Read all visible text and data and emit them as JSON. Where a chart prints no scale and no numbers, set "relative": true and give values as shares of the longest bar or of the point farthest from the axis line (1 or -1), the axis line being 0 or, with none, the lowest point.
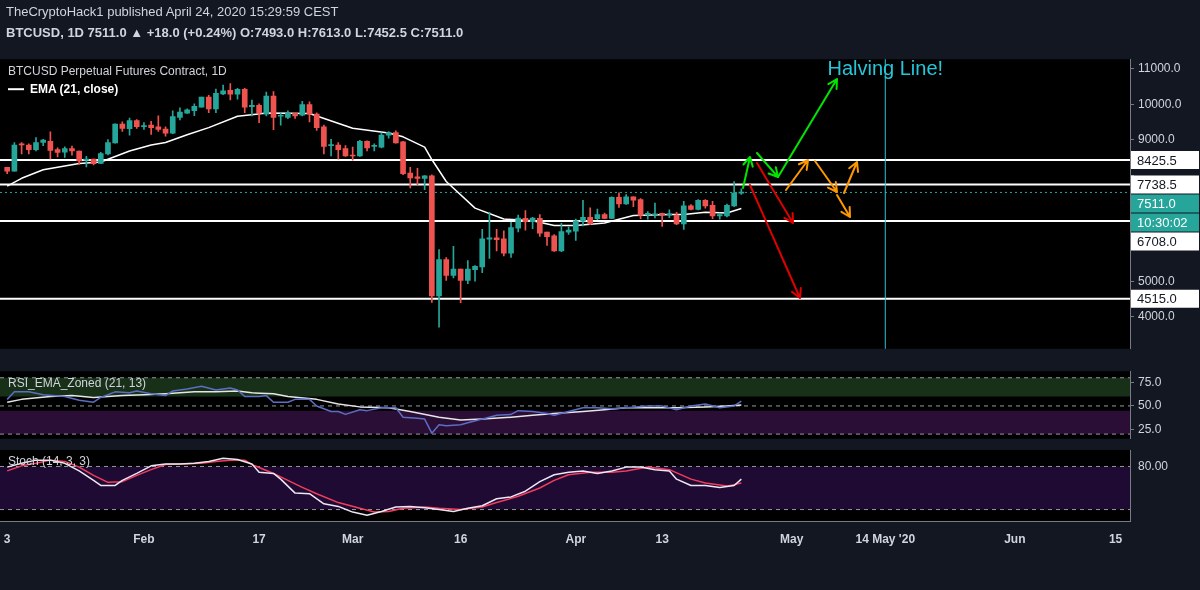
{
  "chart_data": [
    {
      "type": "candlestick",
      "title": "BTCUSD Perpetual Futures Contract, 1D",
      "subtitle": "BTCUSD, 1D  7511.0 ▲ +18.0 (+0.24%) O:7493.0 H:7613.0 L:7452.5 C:7511.0",
      "annotations": [
        "TheCryptoHack1 published April 24, 2020 15:29:59 CEST",
        "10:30:02"
      ],
      "x": [
        "2020-01-13",
        "2020-01-14",
        "2020-01-15",
        "2020-01-16",
        "2020-01-17",
        "2020-01-18",
        "2020-01-19",
        "2020-01-20",
        "2020-01-21",
        "2020-01-22",
        "2020-01-23",
        "2020-01-24",
        "2020-01-25",
        "2020-01-26",
        "2020-01-27",
        "2020-01-28",
        "2020-01-29",
        "2020-01-30",
        "2020-01-31",
        "2020-02-01",
        "2020-02-02",
        "2020-02-03",
        "2020-02-04",
        "2020-02-05",
        "2020-02-06",
        "2020-02-07",
        "2020-02-08",
        "2020-02-09",
        "2020-02-10",
        "2020-02-11",
        "2020-02-12",
        "2020-02-13",
        "2020-02-14",
        "2020-02-15",
        "2020-02-16",
        "2020-02-17",
        "2020-02-18",
        "2020-02-19",
        "2020-02-20",
        "2020-02-21",
        "2020-02-22",
        "2020-02-23",
        "2020-02-24",
        "2020-02-25",
        "2020-02-26",
        "2020-02-27",
        "2020-02-28",
        "2020-02-29",
        "2020-03-01",
        "2020-03-02",
        "2020-03-03",
        "2020-03-04",
        "2020-03-05",
        "2020-03-06",
        "2020-03-07",
        "2020-03-08",
        "2020-03-09",
        "2020-03-10",
        "2020-03-11",
        "2020-03-12",
        "2020-03-13",
        "2020-03-14",
        "2020-03-15",
        "2020-03-16",
        "2020-03-17",
        "2020-03-18",
        "2020-03-19",
        "2020-03-20",
        "2020-03-21",
        "2020-03-22",
        "2020-03-23",
        "2020-03-24",
        "2020-03-25",
        "2020-03-26",
        "2020-03-27",
        "2020-03-28",
        "2020-03-29",
        "2020-03-30",
        "2020-03-31",
        "2020-04-01",
        "2020-04-02",
        "2020-04-03",
        "2020-04-04",
        "2020-04-05",
        "2020-04-06",
        "2020-04-07",
        "2020-04-08",
        "2020-04-09",
        "2020-04-10",
        "2020-04-11",
        "2020-04-12",
        "2020-04-13",
        "2020-04-14",
        "2020-04-15",
        "2020-04-16",
        "2020-04-17",
        "2020-04-18",
        "2020-04-19",
        "2020-04-20",
        "2020-04-21",
        "2020-04-22",
        "2020-04-23",
        "2020-04-24"
      ],
      "ohlc": [
        [
          8220,
          8220,
          8040,
          8110
        ],
        [
          8110,
          8920,
          8110,
          8850
        ],
        [
          8880,
          8920,
          8600,
          8850
        ],
        [
          8850,
          8880,
          8600,
          8720
        ],
        [
          8720,
          9060,
          8680,
          8920
        ],
        [
          8920,
          9010,
          8830,
          8990
        ],
        [
          8950,
          9220,
          8460,
          8700
        ],
        [
          8720,
          8770,
          8510,
          8640
        ],
        [
          8650,
          8800,
          8500,
          8750
        ],
        [
          8750,
          8820,
          8560,
          8680
        ],
        [
          8680,
          8680,
          8300,
          8400
        ],
        [
          8420,
          8530,
          8230,
          8450
        ],
        [
          8450,
          8450,
          8290,
          8320
        ],
        [
          8330,
          8640,
          8320,
          8610
        ],
        [
          8600,
          9000,
          8570,
          8920
        ],
        [
          8910,
          9450,
          8900,
          9440
        ],
        [
          9440,
          9500,
          9230,
          9320
        ],
        [
          9310,
          9610,
          9130,
          9540
        ],
        [
          9540,
          9570,
          9320,
          9370
        ],
        [
          9370,
          9480,
          9290,
          9400
        ],
        [
          9410,
          9520,
          9150,
          9340
        ],
        [
          9360,
          9670,
          9230,
          9290
        ],
        [
          9300,
          9360,
          9100,
          9180
        ],
        [
          9180,
          9810,
          9170,
          9650
        ],
        [
          9630,
          9900,
          9560,
          9780
        ],
        [
          9750,
          9870,
          9740,
          9840
        ],
        [
          9820,
          10010,
          9680,
          9940
        ],
        [
          9920,
          10200,
          9920,
          10200
        ],
        [
          10200,
          10250,
          9760,
          9870
        ],
        [
          9870,
          10430,
          9760,
          10310
        ],
        [
          10290,
          10540,
          10270,
          10380
        ],
        [
          10390,
          10580,
          10120,
          10280
        ],
        [
          10280,
          10450,
          10140,
          10420
        ],
        [
          10420,
          10450,
          9760,
          9920
        ],
        [
          9930,
          10120,
          9670,
          9970
        ],
        [
          9970,
          10010,
          9480,
          9750
        ],
        [
          9720,
          10340,
          9670,
          10230
        ],
        [
          10230,
          10360,
          9280,
          9630
        ],
        [
          9660,
          9760,
          9410,
          9670
        ],
        [
          9630,
          9810,
          9590,
          9740
        ],
        [
          9740,
          9740,
          9600,
          9670
        ],
        [
          9690,
          10080,
          9670,
          9990
        ],
        [
          9990,
          10070,
          9500,
          9720
        ],
        [
          9720,
          9760,
          9260,
          9340
        ],
        [
          9360,
          9410,
          8600,
          8810
        ],
        [
          8830,
          9010,
          8540,
          8840
        ],
        [
          8850,
          8920,
          8450,
          8720
        ],
        [
          8750,
          8830,
          8530,
          8540
        ],
        [
          8560,
          8790,
          8420,
          8540
        ],
        [
          8540,
          8980,
          8530,
          8950
        ],
        [
          8950,
          8970,
          8680,
          8770
        ],
        [
          8810,
          8880,
          8680,
          8830
        ],
        [
          8790,
          9190,
          8770,
          9130
        ],
        [
          9130,
          9230,
          9040,
          9200
        ],
        [
          9200,
          9250,
          8900,
          8910
        ],
        [
          8940,
          8950,
          8010,
          8040
        ],
        [
          8060,
          8220,
          7640,
          7920
        ],
        [
          7950,
          8190,
          7730,
          7910
        ],
        [
          7910,
          7990,
          7590,
          7980
        ],
        [
          7980,
          8010,
          4410,
          4590
        ],
        [
          4590,
          5900,
          3710,
          5620
        ],
        [
          5620,
          5670,
          5030,
          5170
        ],
        [
          5170,
          5990,
          5100,
          5350
        ],
        [
          5350,
          5350,
          4400,
          5030
        ],
        [
          5030,
          5590,
          4940,
          5350
        ],
        [
          5330,
          5450,
          5010,
          5430
        ],
        [
          5410,
          6470,
          5250,
          6200
        ],
        [
          6190,
          6950,
          5650,
          6230
        ],
        [
          6230,
          6470,
          5860,
          6180
        ],
        [
          6200,
          6430,
          5720,
          5800
        ],
        [
          5800,
          6670,
          5680,
          6520
        ],
        [
          6500,
          6870,
          6400,
          6790
        ],
        [
          6780,
          7000,
          6450,
          6690
        ],
        [
          6690,
          6810,
          6490,
          6790
        ],
        [
          6780,
          6890,
          6270,
          6360
        ],
        [
          6390,
          6390,
          6020,
          6260
        ],
        [
          6290,
          6320,
          5850,
          5860
        ],
        [
          5860,
          6640,
          5840,
          6410
        ],
        [
          6390,
          6540,
          6330,
          6450
        ],
        [
          6420,
          6760,
          6160,
          6710
        ],
        [
          6700,
          7290,
          6570,
          6810
        ],
        [
          6810,
          7080,
          6600,
          6620
        ],
        [
          6770,
          7040,
          6740,
          6890
        ],
        [
          6890,
          6930,
          6770,
          6780
        ],
        [
          6780,
          7390,
          6770,
          7370
        ],
        [
          7370,
          7500,
          7090,
          7190
        ],
        [
          7190,
          7450,
          7170,
          7390
        ],
        [
          7390,
          7390,
          7110,
          7290
        ],
        [
          7310,
          7340,
          6770,
          6860
        ],
        [
          6880,
          6970,
          6760,
          6920
        ],
        [
          6880,
          7210,
          6790,
          6910
        ],
        [
          6920,
          6930,
          6550,
          6880
        ],
        [
          6870,
          7020,
          6800,
          6910
        ],
        [
          6870,
          6950,
          6600,
          6620
        ],
        [
          6620,
          7260,
          6470,
          7130
        ],
        [
          7130,
          7170,
          7020,
          7030
        ],
        [
          7030,
          7310,
          7020,
          7290
        ],
        [
          7290,
          7310,
          7070,
          7130
        ],
        [
          7150,
          7260,
          6770,
          6850
        ],
        [
          6850,
          6930,
          6760,
          6890
        ],
        [
          6850,
          7180,
          6820,
          7150
        ],
        [
          7130,
          7820,
          7110,
          7490
        ],
        [
          7493.0,
          7613.0,
          7452.5,
          7511.0
        ]
      ],
      "series": [
        {
          "name": "EMA (21, close)",
          "type": "line",
          "color": "#ffffff",
          "x": [
            "2020-01-13",
            "2020-01-15",
            "2020-01-18",
            "2020-01-23",
            "2020-01-26",
            "2020-01-30",
            "2020-02-02",
            "2020-02-04",
            "2020-02-07",
            "2020-02-10",
            "2020-02-14",
            "2020-02-18",
            "2020-02-24",
            "2020-03-01",
            "2020-03-06",
            "2020-03-08",
            "2020-03-11",
            "2020-03-12",
            "2020-03-14",
            "2020-03-18",
            "2020-03-22",
            "2020-03-26",
            "2020-03-29",
            "2020-04-01",
            "2020-04-05",
            "2020-04-09",
            "2020-04-14",
            "2020-04-16",
            "2020-04-19",
            "2020-04-22",
            "2020-04-24"
          ],
          "values": [
            7690,
            7910,
            8150,
            8330,
            8370,
            8680,
            8850,
            8920,
            9140,
            9340,
            9660,
            9750,
            9740,
            9320,
            9190,
            9080,
            8790,
            8440,
            7820,
            7070,
            6760,
            6710,
            6580,
            6580,
            6650,
            6860,
            6890,
            6890,
            6950,
            6930,
            7060
          ]
        }
      ],
      "xlim": [
        "2020-01-12",
        "2020-06-17"
      ],
      "ylim": [
        3100,
        11270
      ],
      "yticks": [
        {
          "value": 4000,
          "label": "4000.0"
        },
        {
          "value": 5000,
          "label": "5000.0"
        },
        {
          "value": 6000,
          "label": null
        },
        {
          "value": 7000,
          "label": null
        },
        {
          "value": 8000,
          "label": null
        },
        {
          "value": 9000,
          "label": "9000.0"
        },
        {
          "value": 10000,
          "label": "10000.0"
        },
        {
          "value": 11000,
          "label": "11000.0"
        }
      ],
      "ref_lines": [
        {
          "axis": "y",
          "value": 8425.5,
          "label": "8425.5",
          "color": "#ffffff"
        },
        {
          "axis": "y",
          "value": 7738.5,
          "label": "7738.5",
          "color": "#ffffff"
        },
        {
          "axis": "y",
          "value": 7511,
          "label": "7511.0",
          "color": "#26a69a",
          "line_style": "dotted"
        },
        {
          "axis": "y",
          "value": 6708.0,
          "label": "6708.0",
          "color": "#ffffff"
        },
        {
          "axis": "y",
          "value": 4515.0,
          "label": "4515.0",
          "color": "#ffffff"
        },
        {
          "axis": "x",
          "value": "2020-05-14",
          "label": "Halving Line!",
          "color": "#26c6da"
        }
      ],
      "legend": "top left",
      "tick_labels": "y"
    },
    {
      "type": "line",
      "title": "RSI_EMA_Zoned (21, 13)",
      "series": [
        {
          "color": "#5b6ec4",
          "x": [
            "2020-01-13",
            "2020-01-14",
            "2020-01-16",
            "2020-01-18",
            "2020-01-21",
            "2020-01-23",
            "2020-01-25",
            "2020-01-26",
            "2020-01-28",
            "2020-01-30",
            "2020-01-31",
            "2020-02-02",
            "2020-02-04",
            "2020-02-05",
            "2020-02-07",
            "2020-02-09",
            "2020-02-11",
            "2020-02-13",
            "2020-02-14",
            "2020-02-15",
            "2020-02-17",
            "2020-02-18",
            "2020-02-19",
            "2020-02-21",
            "2020-02-22",
            "2020-02-24",
            "2020-02-25",
            "2020-02-27",
            "2020-02-28",
            "2020-02-29",
            "2020-03-02",
            "2020-03-03",
            "2020-03-05",
            "2020-03-07",
            "2020-03-08",
            "2020-03-10",
            "2020-03-11",
            "2020-03-12",
            "2020-03-13",
            "2020-03-14",
            "2020-03-16",
            "2020-03-17",
            "2020-03-19",
            "2020-03-20",
            "2020-03-21",
            "2020-03-23",
            "2020-03-24",
            "2020-03-26",
            "2020-03-28",
            "2020-03-29",
            "2020-03-31",
            "2020-04-02",
            "2020-04-04",
            "2020-04-06",
            "2020-04-08",
            "2020-04-11",
            "2020-04-13",
            "2020-04-15",
            "2020-04-17",
            "2020-04-19",
            "2020-04-21",
            "2020-04-23",
            "2020-04-24"
          ],
          "values": [
            57,
            65,
            65,
            62,
            60,
            56,
            54,
            59,
            65,
            64,
            66,
            63,
            61,
            66,
            68,
            71,
            67,
            69,
            67,
            60,
            60,
            61,
            54,
            54,
            57,
            57,
            50,
            44,
            44,
            41,
            46,
            45,
            48,
            48,
            38,
            37,
            36,
            21,
            30,
            29,
            30,
            32,
            36,
            38,
            40,
            41,
            45,
            44,
            42,
            40,
            44,
            48,
            48,
            47,
            48,
            50,
            50,
            46,
            50,
            52,
            48,
            50,
            55
          ]
        },
        {
          "color": "#e6e6e6",
          "x": [
            "2020-01-13",
            "2020-01-15",
            "2020-01-19",
            "2020-01-22",
            "2020-01-25",
            "2020-01-29",
            "2020-02-01",
            "2020-02-04",
            "2020-02-08",
            "2020-02-11",
            "2020-02-14",
            "2020-02-16",
            "2020-02-19",
            "2020-02-21",
            "2020-02-25",
            "2020-02-28",
            "2020-03-02",
            "2020-03-06",
            "2020-03-09",
            "2020-03-13",
            "2020-03-16",
            "2020-03-19",
            "2020-03-23",
            "2020-03-26",
            "2020-03-29",
            "2020-04-02",
            "2020-04-05",
            "2020-04-08",
            "2020-04-12",
            "2020-04-15",
            "2020-04-19",
            "2020-04-22",
            "2020-04-24"
          ],
          "values": [
            54,
            57,
            60,
            61,
            59,
            61,
            62,
            63,
            65,
            65,
            66,
            64,
            63,
            60,
            57,
            52,
            49,
            48,
            44,
            38,
            35,
            36,
            38,
            40,
            42,
            44,
            46,
            48,
            48,
            48,
            49,
            50,
            51
          ]
        }
      ],
      "xlim": [
        "2020-01-12",
        "2020-06-17"
      ],
      "ylim": [
        15,
        87
      ],
      "yticks": [
        {
          "value": 25,
          "label": "25.0"
        },
        {
          "value": 50,
          "label": "50.0"
        },
        {
          "value": 75,
          "label": "75.0"
        }
      ],
      "bands": [
        {
          "axis": "y",
          "from": 60,
          "to": 80,
          "color": "#183018"
        },
        {
          "axis": "y",
          "from": 20,
          "to": 45,
          "color": "#2a0e36"
        }
      ],
      "ref_lines": [
        {
          "axis": "y",
          "value": 80,
          "label": null,
          "color": "#9598a1",
          "line_style": "dashed"
        },
        {
          "axis": "y",
          "value": 50,
          "label": null,
          "color": "#9598a1",
          "line_style": "dashed"
        },
        {
          "axis": "y",
          "value": 20,
          "label": null,
          "color": "#9598a1",
          "line_style": "dashed"
        }
      ],
      "tick_labels": "y"
    },
    {
      "type": "line",
      "title": "Stoch (14, 3, 3)",
      "relative": true,
      "annotations": [
        "80.00"
      ],
      "series": [
        {
          "color": "#ece6f5",
          "x": [
            "2020-01-13",
            "2020-01-15",
            "2020-01-17",
            "2020-01-19",
            "2020-01-21",
            "2020-01-23",
            "2020-01-25",
            "2020-01-26",
            "2020-01-28",
            "2020-01-29",
            "2020-01-31",
            "2020-02-02",
            "2020-02-04",
            "2020-02-06",
            "2020-02-08",
            "2020-02-10",
            "2020-02-12",
            "2020-02-14",
            "2020-02-16",
            "2020-02-17",
            "2020-02-19",
            "2020-02-20",
            "2020-02-22",
            "2020-02-24",
            "2020-02-26",
            "2020-02-28",
            "2020-03-01",
            "2020-03-03",
            "2020-03-05",
            "2020-03-07",
            "2020-03-09",
            "2020-03-11",
            "2020-03-13",
            "2020-03-15",
            "2020-03-17",
            "2020-03-19",
            "2020-03-21",
            "2020-03-23",
            "2020-03-25",
            "2020-03-27",
            "2020-03-29",
            "2020-03-31",
            "2020-04-02",
            "2020-04-04",
            "2020-04-06",
            "2020-04-08",
            "2020-04-10",
            "2020-04-12",
            "2020-04-14",
            "2020-04-15",
            "2020-04-17",
            "2020-04-19",
            "2020-04-21",
            "2020-04-23",
            "2020-04-24"
          ],
          "values": [
            0.86,
            0.92,
            0.97,
            0.97,
            0.92,
            0.8,
            0.65,
            0.57,
            0.57,
            0.65,
            0.76,
            0.88,
            0.91,
            0.91,
            0.92,
            0.95,
            1,
            0.98,
            0.91,
            0.78,
            0.76,
            0.67,
            0.45,
            0.44,
            0.28,
            0.24,
            0.15,
            0.1,
            0.16,
            0.23,
            0.24,
            0.22,
            0.19,
            0.16,
            0.21,
            0.25,
            0.36,
            0.39,
            0.48,
            0.63,
            0.74,
            0.78,
            0.8,
            0.76,
            0.8,
            0.86,
            0.86,
            0.82,
            0.8,
            0.67,
            0.57,
            0.57,
            0.54,
            0.57,
            0.67
          ]
        },
        {
          "color": "#f23d5c",
          "x": [
            "2020-01-13",
            "2020-01-15",
            "2020-01-17",
            "2020-01-19",
            "2020-01-21",
            "2020-01-23",
            "2020-01-25",
            "2020-01-27",
            "2020-01-29",
            "2020-01-31",
            "2020-02-02",
            "2020-02-04",
            "2020-02-06",
            "2020-02-09",
            "2020-02-11",
            "2020-02-13",
            "2020-02-15",
            "2020-02-16",
            "2020-02-19",
            "2020-02-21",
            "2020-02-23",
            "2020-02-25",
            "2020-02-28",
            "2020-03-02",
            "2020-03-04",
            "2020-03-06",
            "2020-03-08",
            "2020-03-11",
            "2020-03-13",
            "2020-03-16",
            "2020-03-19",
            "2020-03-21",
            "2020-03-24",
            "2020-03-27",
            "2020-03-29",
            "2020-03-31",
            "2020-04-03",
            "2020-04-06",
            "2020-04-08",
            "2020-04-11",
            "2020-04-14",
            "2020-04-17",
            "2020-04-19",
            "2020-04-22",
            "2020-04-24"
          ],
          "values": [
            0.8,
            0.88,
            0.92,
            0.97,
            0.95,
            0.86,
            0.73,
            0.62,
            0.63,
            0.73,
            0.82,
            0.9,
            0.91,
            0.92,
            0.95,
            0.97,
            0.97,
            0.9,
            0.76,
            0.65,
            0.54,
            0.44,
            0.3,
            0.21,
            0.15,
            0.16,
            0.21,
            0.23,
            0.21,
            0.19,
            0.23,
            0.3,
            0.4,
            0.53,
            0.65,
            0.74,
            0.78,
            0.78,
            0.8,
            0.86,
            0.82,
            0.67,
            0.61,
            0.56,
            0.61
          ]
        }
      ],
      "xlim": [
        "2020-01-12",
        "2020-06-17"
      ],
      "xticks": [
        {
          "value": "2020-01-13",
          "label": "3"
        },
        {
          "value": "2020-02-01",
          "label": "Feb"
        },
        {
          "value": "2020-02-17",
          "label": "17"
        },
        {
          "value": "2020-03-01",
          "label": "Mar"
        },
        {
          "value": "2020-03-16",
          "label": "16"
        },
        {
          "value": "2020-04-01",
          "label": "Apr"
        },
        {
          "value": "2020-04-13",
          "label": "13"
        },
        {
          "value": "2020-05-01",
          "label": "May"
        },
        {
          "value": "2020-05-14",
          "label": "14 May '20"
        },
        {
          "value": "2020-06-01",
          "label": "Jun"
        },
        {
          "value": "2020-06-15",
          "label": "15"
        }
      ],
      "bands": [
        {
          "axis": "y",
          "from": 0.19,
          "to": 0.87,
          "color": "#1f0a33"
        }
      ],
      "ref_lines": [
        {
          "axis": "y",
          "value": 0.87,
          "label": null,
          "color": "#9598a1",
          "line_style": "dashed"
        },
        {
          "axis": "y",
          "value": 0.19,
          "label": null,
          "color": "#9598a1",
          "line_style": "dashed"
        }
      ]
    }
  ]
}
